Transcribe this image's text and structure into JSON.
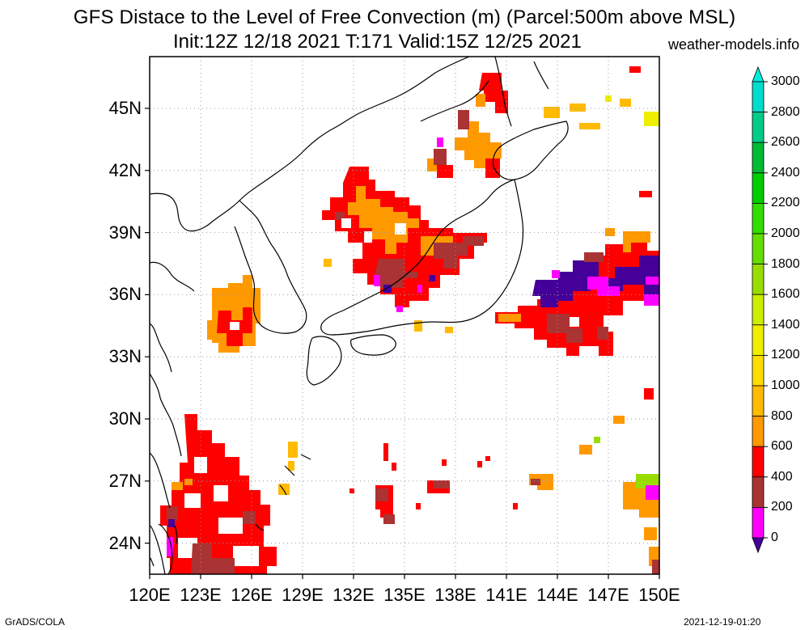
{
  "header": {
    "title_line1": "GFS Distace to the Level of Free Convection (m) (Parcel:500m above MSL)",
    "title_line2": "Init:12Z 12/18 2021 T:171 Valid:15Z 12/25 2021",
    "credit": "weather-models.info"
  },
  "footer": {
    "software": "GrADS/COLA",
    "timestamp": "2021-12-19-01:20"
  },
  "map": {
    "lon_range": [
      120,
      150
    ],
    "lat_range": [
      22.5,
      47.5
    ],
    "lat_ticks": [
      {
        "value": 45,
        "label": "45N"
      },
      {
        "value": 42,
        "label": "42N"
      },
      {
        "value": 39,
        "label": "39N"
      },
      {
        "value": 36,
        "label": "36N"
      },
      {
        "value": 33,
        "label": "33N"
      },
      {
        "value": 30,
        "label": "30N"
      },
      {
        "value": 27,
        "label": "27N"
      },
      {
        "value": 24,
        "label": "24N"
      }
    ],
    "lon_ticks": [
      {
        "value": 120,
        "label": "120E"
      },
      {
        "value": 123,
        "label": "123E"
      },
      {
        "value": 126,
        "label": "126E"
      },
      {
        "value": 129,
        "label": "129E"
      },
      {
        "value": 132,
        "label": "132E"
      },
      {
        "value": 135,
        "label": "135E"
      },
      {
        "value": 138,
        "label": "138E"
      },
      {
        "value": 141,
        "label": "141E"
      },
      {
        "value": 144,
        "label": "144E"
      },
      {
        "value": 147,
        "label": "147E"
      },
      {
        "value": 150,
        "label": "150E"
      }
    ],
    "grid": "dotted"
  },
  "colorbar": {
    "labels": [
      "3000",
      "2800",
      "2600",
      "2400",
      "2200",
      "2000",
      "1800",
      "1600",
      "1400",
      "1200",
      "1000",
      "800",
      "600",
      "400",
      "200",
      "0"
    ],
    "colors": [
      "#00ddcc",
      "#00cc88",
      "#00bb33",
      "#00cc00",
      "#33dd00",
      "#66dd00",
      "#99dd00",
      "#ccee00",
      "#eeee00",
      "#ffdd00",
      "#ffbb00",
      "#ff9900",
      "#ff0000",
      "#aa3333",
      "#ff00ff",
      "#440099"
    ],
    "top_arrow_color": "#00eedd",
    "bottom_arrow_color": "#440099"
  }
}
